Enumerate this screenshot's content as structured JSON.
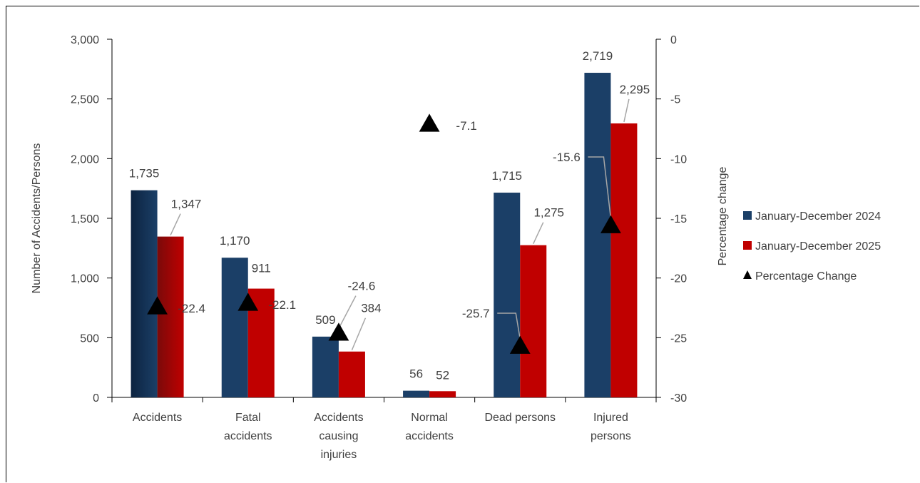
{
  "chart_data": {
    "type": "bar",
    "categories": [
      [
        "Accidents"
      ],
      [
        "Fatal",
        "accidents"
      ],
      [
        "Accidents",
        "causing",
        "injuries"
      ],
      [
        "Normal",
        "accidents"
      ],
      [
        "Dead persons"
      ],
      [
        "Injured",
        "persons"
      ]
    ],
    "series": [
      {
        "name": "January-December 2024",
        "values": [
          1735,
          1170,
          509,
          56,
          1715,
          2719
        ],
        "labels": [
          "1,735",
          "1,170",
          "509",
          "56",
          "1,715",
          "2,719"
        ],
        "color": "#1b3f67"
      },
      {
        "name": "January-December 2025",
        "values": [
          1347,
          911,
          384,
          52,
          1275,
          2295
        ],
        "labels": [
          "1,347",
          "911",
          "384",
          "52",
          "1,275",
          "2,295"
        ],
        "color": "#c00000"
      }
    ],
    "percentage_change": {
      "name": "Percentage Change",
      "values": [
        -22.4,
        -22.1,
        -24.6,
        -7.1,
        -25.7,
        -15.6
      ],
      "labels": [
        "-22.4",
        "-22.1",
        "-24.6",
        "-7.1",
        "-25.7",
        "-15.6"
      ],
      "color": "#000000"
    },
    "ylabel": "Number of Accidents/Persons",
    "ylim": [
      0,
      3000
    ],
    "yticks": [
      "0",
      "500",
      "1,000",
      "1,500",
      "2,000",
      "2,500",
      "3,000"
    ],
    "y2label": "Percentage change",
    "y2lim": [
      -30,
      0
    ],
    "y2ticks": [
      "-30",
      "-25",
      "-20",
      "-15",
      "-10",
      "-5",
      "0"
    ],
    "grid": false,
    "legend_position": "right"
  }
}
